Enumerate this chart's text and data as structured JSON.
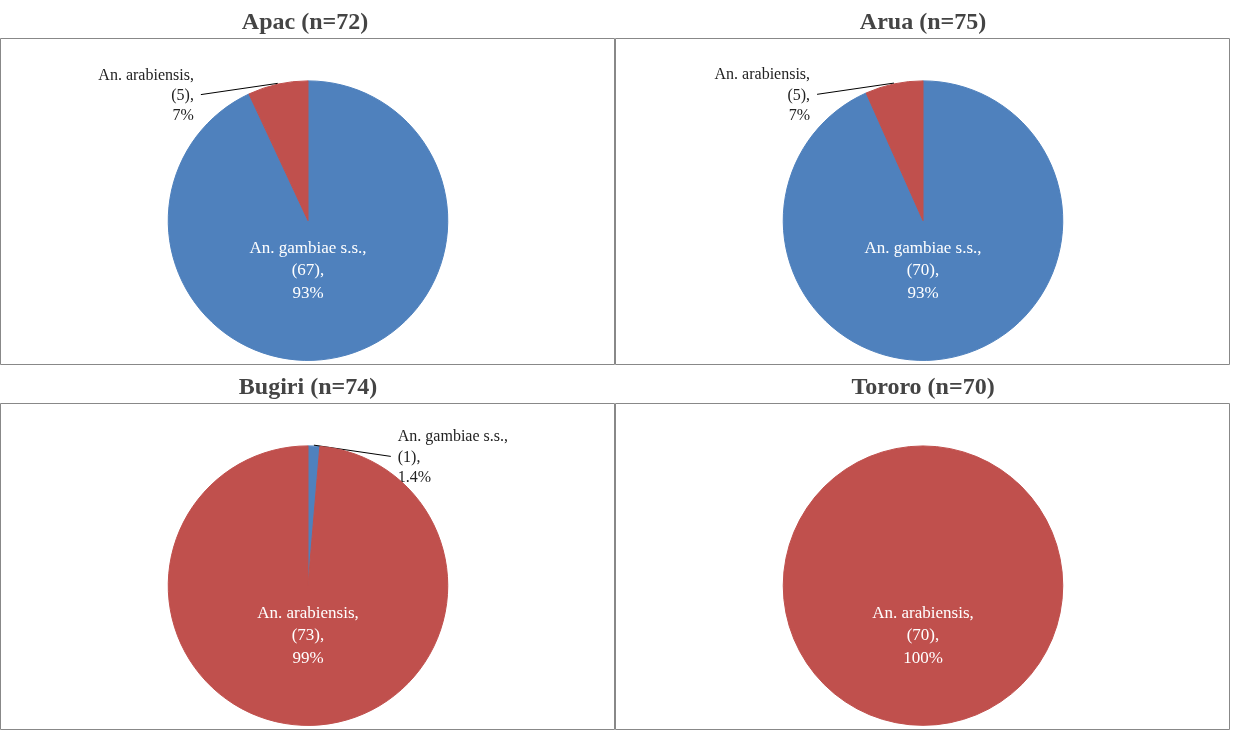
{
  "chart_data": [
    {
      "type": "pie",
      "title": "Apac  (n=72)",
      "categories": [
        "An. gambiae s.s.",
        "An. arabiensis"
      ],
      "values": [
        67,
        5
      ],
      "colors": [
        "#4f81bd",
        "#c0504d"
      ],
      "value_labels": [
        ", (67), 93%",
        ", (5), 7%"
      ]
    },
    {
      "type": "pie",
      "title": "Arua (n=75)",
      "categories": [
        "An. gambiae s.s.",
        "An. arabiensis"
      ],
      "values": [
        70,
        5
      ],
      "colors": [
        "#4f81bd",
        "#c0504d"
      ],
      "value_labels": [
        ", (70), 93%",
        ", (5), 7%"
      ]
    },
    {
      "type": "pie",
      "title": "Bugiri (n=74)",
      "categories": [
        "An. gambiae s.s.",
        "An. arabiensis"
      ],
      "values": [
        1,
        73
      ],
      "colors": [
        "#4f81bd",
        "#c0504d"
      ],
      "value_labels": [
        ", (1), 1.4%",
        ", (73), 99%"
      ]
    },
    {
      "type": "pie",
      "title": "Tororo (n=70)",
      "categories": [
        "An. arabiensis"
      ],
      "values": [
        70
      ],
      "colors": [
        "#c0504d"
      ],
      "value_labels": [
        ", (70), 100%"
      ]
    }
  ]
}
